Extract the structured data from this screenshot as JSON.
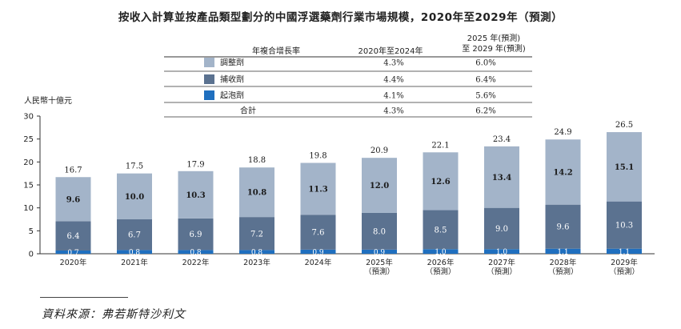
{
  "chart_data": {
    "type": "bar",
    "stacked": true,
    "title": "按收入計算並按產品類型劃分的中國浮選藥劑行業市場規模，2020年至2029年（預測）",
    "ylabel": "人民幣十億元",
    "xlabel": "",
    "ylim": [
      0,
      30
    ],
    "yticks": [
      "0",
      "5",
      "10",
      "15",
      "20",
      "25",
      "30"
    ],
    "grid": false,
    "categories": [
      [
        "2020年"
      ],
      [
        "2021年"
      ],
      [
        "2022年"
      ],
      [
        "2023年"
      ],
      [
        "2024年"
      ],
      [
        "2025年",
        "（預測）"
      ],
      [
        "2026年",
        "（預測）"
      ],
      [
        "2027年",
        "（預測）"
      ],
      [
        "2028年",
        "（預測）"
      ],
      [
        "2029年",
        "（預測）"
      ]
    ],
    "series": [
      {
        "name": "起泡劑",
        "color": "#1f6fbf",
        "values": [
          0.7,
          0.8,
          0.8,
          0.8,
          0.9,
          0.9,
          1.0,
          1.0,
          1.1,
          1.1
        ],
        "labels": [
          "0.7",
          "0.8",
          "0.8",
          "0.8",
          "0.9",
          "0.9",
          "1.0",
          "1.0",
          "1.1",
          "1.1"
        ]
      },
      {
        "name": "捕收劑",
        "color": "#5b7290",
        "values": [
          6.4,
          6.7,
          6.9,
          7.2,
          7.6,
          8.0,
          8.5,
          9.0,
          9.6,
          10.3
        ],
        "labels": [
          "6.4",
          "6.7",
          "6.9",
          "7.2",
          "7.6",
          "8.0",
          "8.5",
          "9.0",
          "9.6",
          "10.3"
        ]
      },
      {
        "name": "調整劑",
        "color": "#a3b4c9",
        "values": [
          9.6,
          10.0,
          10.3,
          10.8,
          11.3,
          12.0,
          12.6,
          13.4,
          14.2,
          15.1
        ],
        "labels": [
          "9.6",
          "10.0",
          "10.3",
          "10.8",
          "11.3",
          "12.0",
          "12.6",
          "13.4",
          "14.2",
          "15.1"
        ]
      }
    ],
    "totals": [
      16.7,
      17.5,
      17.9,
      18.8,
      19.8,
      20.9,
      22.1,
      23.4,
      24.9,
      26.5
    ],
    "total_labels": [
      "16.7",
      "17.5",
      "17.9",
      "18.8",
      "19.8",
      "20.9",
      "22.1",
      "23.4",
      "24.9",
      "26.5"
    ],
    "legend_table": {
      "header": [
        "年複合增長率",
        "2020年至2024年",
        "2025 年(預測)",
        "至 2029 年(預測)"
      ],
      "rows": [
        {
          "name": "調整劑",
          "color": "#a3b4c9",
          "cagr_hist": "4.3%",
          "cagr_fcst": "6.0%"
        },
        {
          "name": "捕收劑",
          "color": "#5b7290",
          "cagr_hist": "4.4%",
          "cagr_fcst": "6.4%"
        },
        {
          "name": "起泡劑",
          "color": "#1f6fbf",
          "cagr_hist": "4.1%",
          "cagr_fcst": "5.6%"
        },
        {
          "name": "合計",
          "color": "",
          "cagr_hist": "4.3%",
          "cagr_fcst": "6.2%"
        }
      ]
    }
  },
  "source": "資料來源：弗若斯特沙利文"
}
